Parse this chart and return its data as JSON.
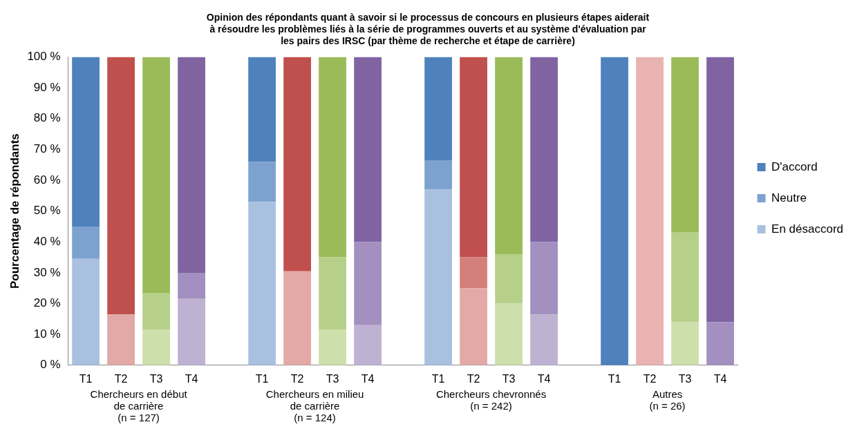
{
  "chart_data": {
    "type": "bar",
    "stacked": true,
    "title": "Opinion des répondants quant à savoir si le processus de concours en plusieurs étapes aiderait\nà résoudre les problèmes liés à la série de programmes ouverts et au système d'évaluation par\nles pairs des IRSC (par thème de recherche et étape de carrière)",
    "ylabel": "Pourcentage de répondants",
    "categories": [
      "T1",
      "T2",
      "T3",
      "T4",
      null,
      "T1",
      "T2",
      "T3",
      "T4",
      null,
      "T1",
      "T2",
      "T3",
      "T4",
      null,
      "T1",
      "T2",
      "T3",
      "T4"
    ],
    "series": [
      {
        "name": "En désaccord",
        "color": "#a9c1df",
        "colors": [
          "#a9c1df",
          "#e2a9a7",
          "#cddfab",
          "#bfb1d2",
          null,
          "#a9c1df",
          "#e2a9a7",
          "#cddfab",
          "#bfb1d2",
          null,
          "#a9c1df",
          "#e2a9a7",
          "#cddfab",
          "#bfb1d2",
          null,
          "#a9c1df",
          "#e2a9a7",
          "#cddfab",
          "#bfb1d2"
        ],
        "values": [
          34.5,
          16.5,
          11.5,
          21.5,
          null,
          53,
          30.5,
          11.5,
          13,
          null,
          57,
          25,
          20,
          16.5,
          null,
          0,
          0,
          14,
          0
        ]
      },
      {
        "name": "Neutre",
        "color": "#7ea2cf",
        "colors": [
          "#7ea2cf",
          "#d57f7c",
          "#b7d089",
          "#a390c0",
          null,
          "#7ea2cf",
          "#d57f7c",
          "#b7d089",
          "#a390c0",
          null,
          "#7ea2cf",
          "#d57f7c",
          "#b7d089",
          "#a390c0",
          null,
          "#7ea2cf",
          "#e8b3b1",
          "#b7d089",
          "#a390c0"
        ],
        "values": [
          10.5,
          0,
          12,
          8.5,
          null,
          13,
          0,
          23.5,
          27,
          null,
          9.5,
          10,
          16,
          23.5,
          null,
          0,
          100,
          29,
          14
        ]
      },
      {
        "name": "D'accord",
        "color": "#4f81bd",
        "colors": [
          "#4f81bd",
          "#c0504d",
          "#9bbb59",
          "#8064a2",
          null,
          "#4f81bd",
          "#c0504d",
          "#9bbb59",
          "#8064a2",
          null,
          "#4f81bd",
          "#c0504d",
          "#9bbb59",
          "#8064a2",
          null,
          "#4f81bd",
          "#c0504d",
          "#9bbb59",
          "#8064a2"
        ],
        "values": [
          55,
          83.5,
          76.5,
          70,
          null,
          34,
          69.5,
          65,
          60,
          null,
          33.5,
          65,
          64,
          60,
          null,
          100,
          0,
          57,
          86
        ]
      }
    ],
    "ylim": [
      0,
      100
    ],
    "yticks": [
      {
        "value": 0,
        "label": "0 %"
      },
      {
        "value": 10,
        "label": "10 %"
      },
      {
        "value": 20,
        "label": "20 %"
      },
      {
        "value": 30,
        "label": "30 %"
      },
      {
        "value": 40,
        "label": "40 %"
      },
      {
        "value": 50,
        "label": "50 %"
      },
      {
        "value": 60,
        "label": "60 %"
      },
      {
        "value": 70,
        "label": "70 %"
      },
      {
        "value": 80,
        "label": "80 %"
      },
      {
        "value": 90,
        "label": "90 %"
      },
      {
        "value": 100,
        "label": "100 %"
      }
    ],
    "legend": "right",
    "annotations": [
      "Chercheurs en début\nde carrière\n(n = 127)",
      "Chercheurs en milieu\nde carrière\n(n = 124)",
      "Chercheurs chevronnés\n(n = 242)",
      "Autres\n(n = 26)"
    ]
  }
}
